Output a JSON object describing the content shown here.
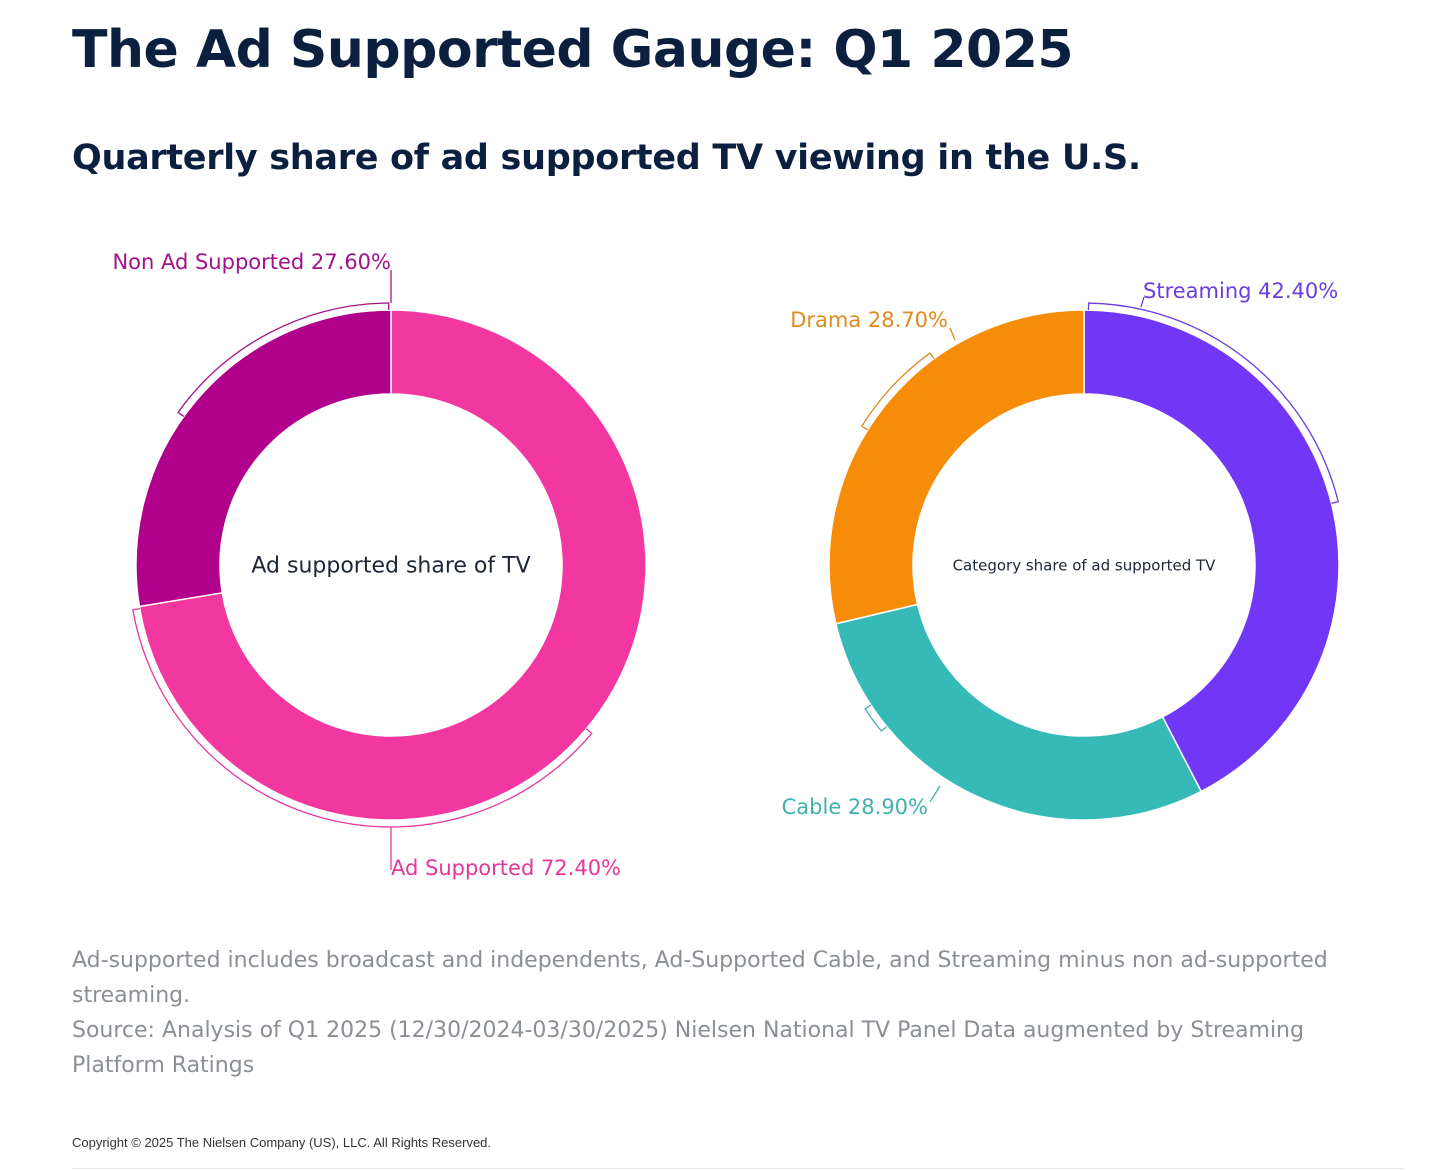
{
  "header": {
    "title": "The Ad Supported Gauge: Q1 2025",
    "subtitle": "Quarterly share of ad supported TV viewing in the U.S."
  },
  "chart_data": [
    {
      "type": "pie",
      "variant": "donut",
      "center_label": "Ad supported share of TV",
      "slices": [
        {
          "label": "Ad Supported",
          "value": 72.4,
          "display": "Ad Supported 72.40%",
          "color": "#f238a0"
        },
        {
          "label": "Non Ad Supported",
          "value": 27.6,
          "display": "Non Ad Supported 27.60%",
          "color": "#b0008c"
        }
      ]
    },
    {
      "type": "pie",
      "variant": "donut",
      "center_label": "Category share of ad supported TV",
      "slices": [
        {
          "label": "Streaming",
          "value": 42.4,
          "display": "Streaming 42.40%",
          "color": "#7236f7"
        },
        {
          "label": "Cable",
          "value": 28.9,
          "display": "Cable 28.90%",
          "color": "#35bab8"
        },
        {
          "label": "Drama",
          "value": 28.7,
          "display": "Drama 28.70%",
          "color": "#f78c08"
        }
      ]
    }
  ],
  "label_colors": {
    "Ad Supported": "#e5369a",
    "Non Ad Supported": "#a3118a",
    "Streaming": "#6a3de0",
    "Cable": "#3fb2ae",
    "Drama": "#e08a1e"
  },
  "footnotes": {
    "line1": "Ad-supported includes broadcast and independents, Ad-Supported Cable, and Streaming minus non ad-supported streaming.",
    "line2": "Source: Analysis of Q1 2025 (12/30/2024-03/30/2025)  Nielsen National TV Panel Data augmented by Streaming Platform Ratings"
  },
  "copyright": "Copyright © 2025 The Nielsen Company (US), LLC. All Rights Reserved."
}
